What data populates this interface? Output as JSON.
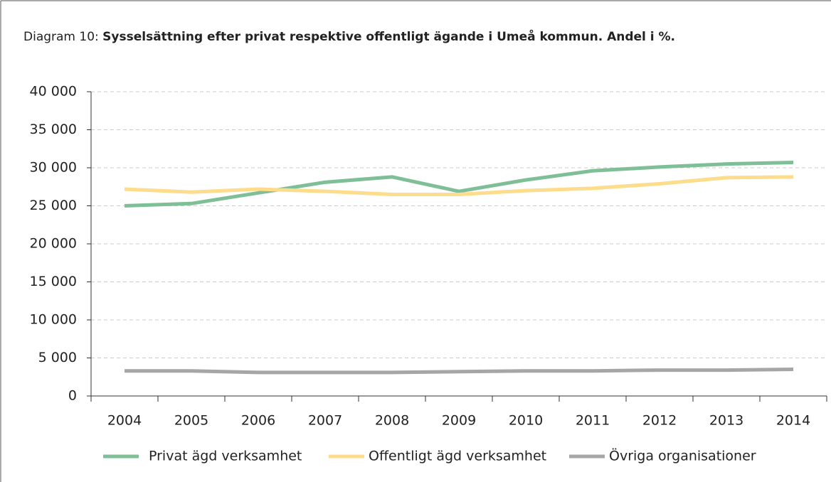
{
  "chart_data": {
    "type": "line",
    "title_label": "Diagram 10:",
    "title": "Sysselsättning efter privat respektive offentligt ägande i Umeå kommun. Andel i %.",
    "categories": [
      "2004",
      "2005",
      "2006",
      "2007",
      "2008",
      "2009",
      "2010",
      "2011",
      "2012",
      "2013",
      "2014"
    ],
    "series": [
      {
        "name": "Privat ägd verksamhet",
        "color": "#7fbf97",
        "values": [
          25000,
          25300,
          26700,
          28100,
          28800,
          26900,
          28400,
          29600,
          30100,
          30500,
          30700
        ]
      },
      {
        "name": "Offentligt ägd verksamhet",
        "color": "#fddc8b",
        "values": [
          27200,
          26800,
          27200,
          26900,
          26500,
          26500,
          27000,
          27300,
          27900,
          28700,
          28800
        ]
      },
      {
        "name": "Övriga organisationer",
        "color": "#a6a6a6",
        "values": [
          3300,
          3300,
          3100,
          3100,
          3100,
          3200,
          3300,
          3300,
          3400,
          3400,
          3500
        ]
      }
    ],
    "ylim": [
      0,
      40000
    ],
    "yticks": [
      0,
      {
        "value": 5000,
        "label": "5 000"
      },
      {
        "value": 10000,
        "label": "10 000"
      },
      {
        "value": 15000,
        "label": "15 000"
      },
      {
        "value": 20000,
        "label": "20 000"
      },
      {
        "value": 25000,
        "label": "25 000"
      },
      {
        "value": 30000,
        "label": "30 000"
      },
      {
        "value": 35000,
        "label": "35 000"
      },
      {
        "value": 40000,
        "label": "40 000"
      }
    ],
    "grid": true
  }
}
